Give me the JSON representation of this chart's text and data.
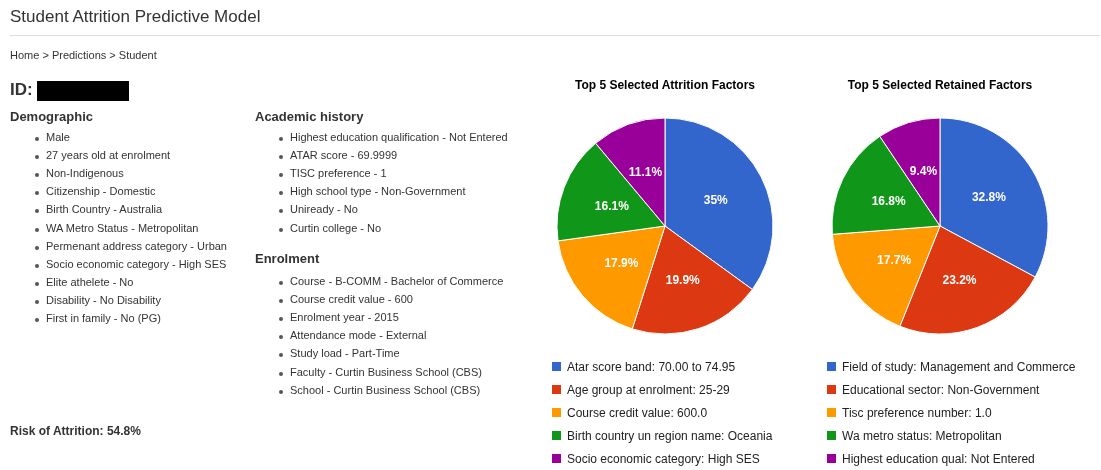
{
  "chart_data": [
    {
      "type": "other",
      "title": "Student Attrition Predictive Model",
      "annotations": [
        "Home > Predictions > Student",
        "ID:",
        "Demographic",
        "Male",
        "27 years old at enrolment",
        "Non-Indigenous",
        "Citizenship - Domestic",
        "Birth Country - Australia",
        "WA Metro Status - Metropolitan",
        "Permenant address category - Urban",
        "Socio economic category - High SES",
        "Elite athelete - No",
        "Disability - No Disability",
        "First in family - No (PG)",
        "Risk of Attrition: 54.8%",
        "Academic history",
        "Highest education qualification - Not Entered",
        "ATAR score - 69.9999",
        "TISC preference - 1",
        "High school type - Non-Government",
        "Uniready - No",
        "Curtin college - No",
        "Enrolment",
        "Course - B-COMM - Bachelor of Commerce",
        "Course credit value - 600",
        "Enrolment year - 2015",
        "Attendance mode - External",
        "Study load - Part-Time",
        "Faculty - Curtin Business School (CBS)",
        "School - Curtin Business School (CBS)"
      ]
    },
    {
      "type": "pie",
      "title": "Top 5 Selected Attrition Factors",
      "legend": "bottom",
      "categories": [
        "Atar score band: 70.00 to 74.95",
        "Age group at enrolment: 25-29",
        "Course credit value: 600.0",
        "Birth country un region name: Oceania",
        "Socio economic category: High SES"
      ],
      "values": [
        35,
        19.9,
        17.9,
        16.1,
        11.1
      ],
      "value_labels": [
        "35%",
        "19.9%",
        "17.9%",
        "16.1%",
        "11.1%"
      ],
      "colors": [
        "#3366cc",
        "#dc3912",
        "#ff9900",
        "#109618",
        "#990099"
      ]
    },
    {
      "type": "pie",
      "title": "Top 5 Selected Retained Factors",
      "legend": "bottom",
      "categories": [
        "Field of study: Management and Commerce",
        "Educational sector: Non-Government",
        "Tisc preference number: 1.0",
        "Wa metro status: Metropolitan",
        "Highest education qual: Not Entered"
      ],
      "values": [
        32.8,
        23.2,
        17.7,
        16.8,
        9.4
      ],
      "value_labels": [
        "32.8%",
        "23.2%",
        "17.7%",
        "16.8%",
        "9.4%"
      ],
      "colors": [
        "#3366cc",
        "#dc3912",
        "#ff9900",
        "#109618",
        "#990099"
      ]
    }
  ]
}
